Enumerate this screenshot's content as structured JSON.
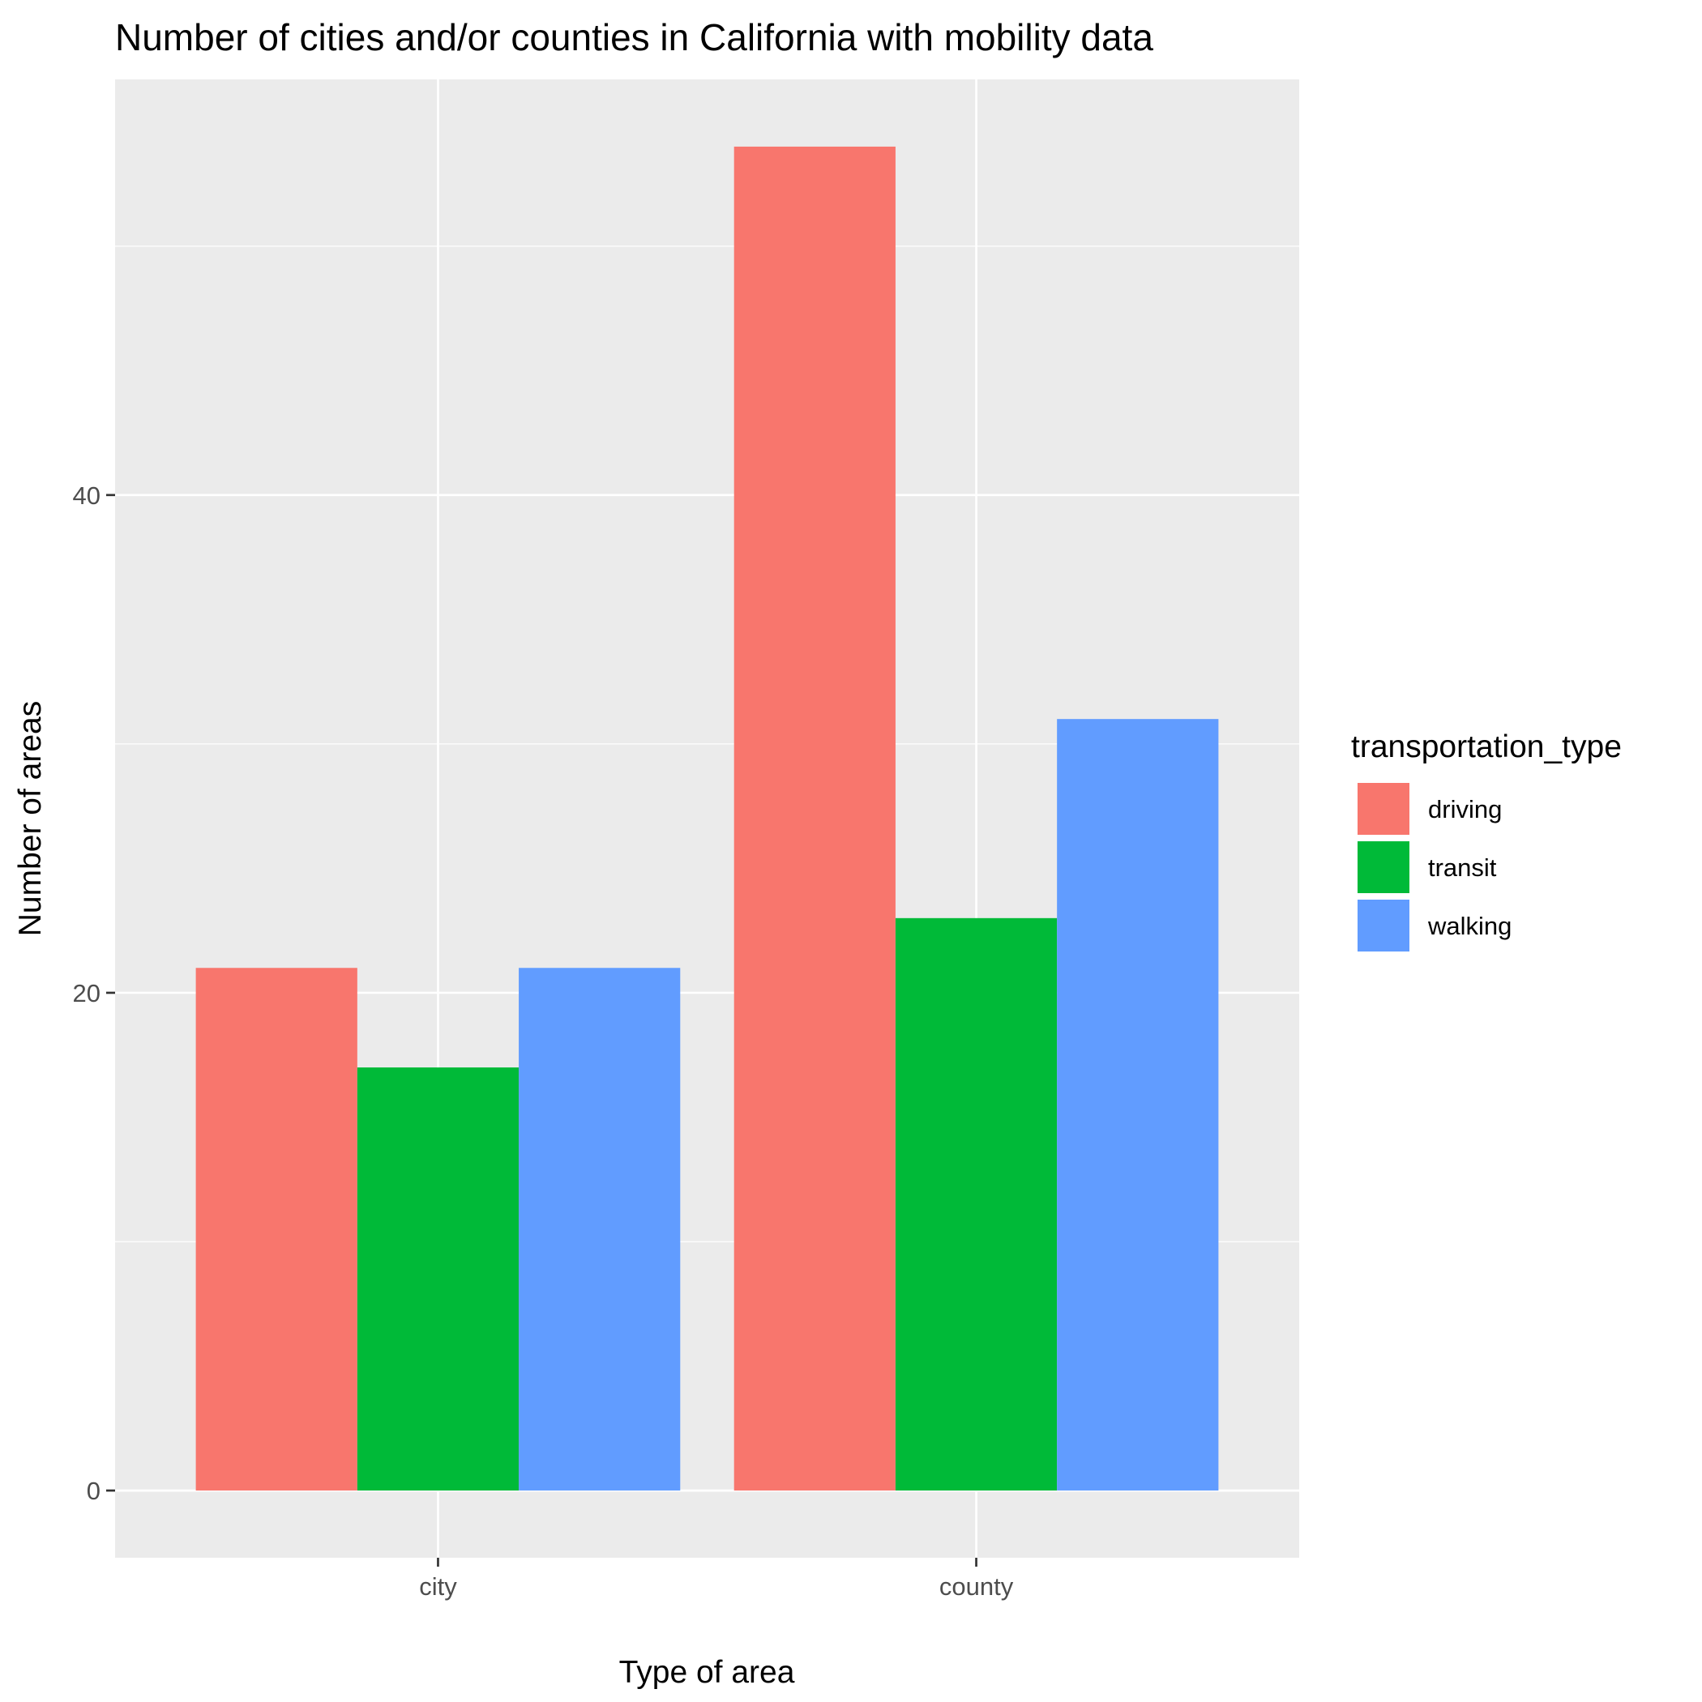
{
  "chart_data": {
    "type": "bar",
    "title": "Number of cities and/or counties in California with mobility data",
    "xlabel": "Type of area",
    "ylabel": "Number of areas",
    "categories": [
      "city",
      "county"
    ],
    "series": [
      {
        "name": "driving",
        "values": [
          21,
          54
        ],
        "color": "#F8766D"
      },
      {
        "name": "transit",
        "values": [
          17,
          23
        ],
        "color": "#00BA38"
      },
      {
        "name": "walking",
        "values": [
          21,
          31
        ],
        "color": "#619CFF"
      }
    ],
    "ylim": [
      -2.7,
      56.7
    ],
    "yticks": [
      0,
      20,
      40
    ],
    "grid": true,
    "legend": {
      "title": "transportation_type",
      "position": "right"
    },
    "background_color": "#EBEBEB",
    "grid_color": "#FFFFFF"
  }
}
